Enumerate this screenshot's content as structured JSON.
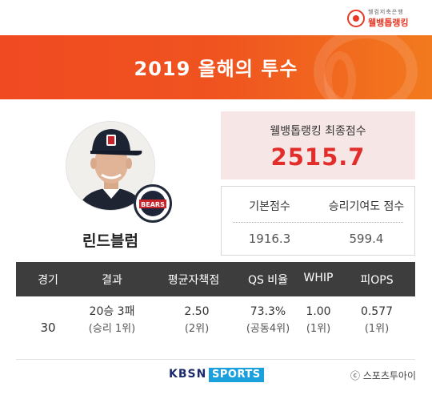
{
  "brand": {
    "logo_small_text": "웰컴저축은행",
    "logo_main_text": "웰뱅톱랭킹"
  },
  "banner": {
    "title": "2019 올해의 투수"
  },
  "player": {
    "name": "린드블럼",
    "team_badge_text": "BEARS",
    "cap_letter": "D"
  },
  "final_score": {
    "label": "웰뱅톱랭킹 최종점수",
    "value": "2515.7",
    "color": "#e32d2a"
  },
  "sub_scores": [
    {
      "label": "기본점수",
      "value": "1916.3"
    },
    {
      "label": "승리기여도 점수",
      "value": "599.4"
    }
  ],
  "stats_table": {
    "headers": [
      "경기",
      "결과",
      "평균자책점",
      "QS 비율",
      "WHIP",
      "피OPS"
    ],
    "games": "30",
    "cells": [
      {
        "value": "20승 3패",
        "rank": "(승리 1위)"
      },
      {
        "value": "2.50",
        "rank": "(2위)"
      },
      {
        "value": "73.3%",
        "rank": "(공동4위)"
      },
      {
        "value": "1.00",
        "rank": "(1위)"
      },
      {
        "value": "0.577",
        "rank": "(1위)"
      }
    ]
  },
  "footer": {
    "broadcaster_a": "KBSN",
    "broadcaster_b": "SPORTS",
    "copyright": "ⓒ 스포츠투아이"
  },
  "colors": {
    "banner_orange": "#f04a22",
    "header_dark": "#3d3d3d",
    "score_bg": "#f6e7e6"
  }
}
